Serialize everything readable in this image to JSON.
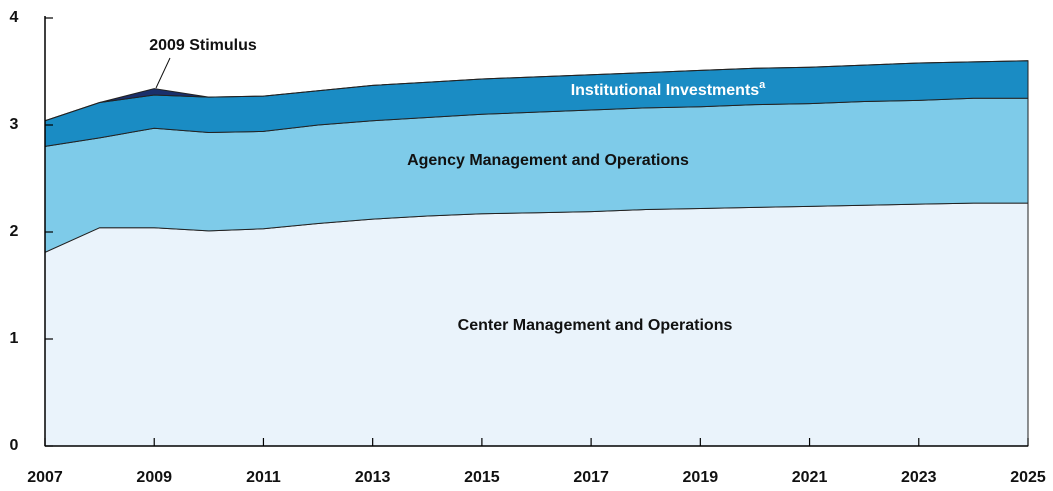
{
  "chart_data": {
    "type": "stacked_area",
    "x": [
      2007,
      2008,
      2009,
      2010,
      2011,
      2012,
      2013,
      2014,
      2015,
      2016,
      2017,
      2018,
      2019,
      2020,
      2021,
      2022,
      2023,
      2024,
      2025
    ],
    "xlim": [
      2007,
      2025
    ],
    "xticks": [
      2007,
      2009,
      2011,
      2013,
      2015,
      2017,
      2019,
      2021,
      2023,
      2025
    ],
    "ylim": [
      0,
      4
    ],
    "yticks": [
      0,
      1,
      2,
      3,
      4
    ],
    "grid": false,
    "series": [
      {
        "name": "Center Management and Operations",
        "color": "#eaf3fb",
        "values": [
          1.81,
          2.04,
          2.04,
          2.01,
          2.03,
          2.08,
          2.12,
          2.15,
          2.17,
          2.18,
          2.19,
          2.21,
          2.22,
          2.23,
          2.24,
          2.25,
          2.26,
          2.27,
          2.27
        ]
      },
      {
        "name": "Agency Management and Operations",
        "color": "#7ecbe9",
        "values": [
          0.99,
          0.84,
          0.93,
          0.92,
          0.91,
          0.92,
          0.92,
          0.92,
          0.93,
          0.94,
          0.95,
          0.95,
          0.95,
          0.96,
          0.96,
          0.97,
          0.97,
          0.98,
          0.98
        ]
      },
      {
        "name": "Institutional Investments",
        "note": "a",
        "color": "#1a8cc4",
        "values": [
          0.24,
          0.33,
          0.31,
          0.33,
          0.33,
          0.32,
          0.33,
          0.33,
          0.33,
          0.33,
          0.33,
          0.33,
          0.34,
          0.34,
          0.34,
          0.34,
          0.35,
          0.34,
          0.35
        ]
      },
      {
        "name": "2009 Stimulus",
        "color": "#1a2f6b",
        "values": [
          0,
          0,
          0.06,
          0,
          0,
          0,
          0,
          0,
          0,
          0,
          0,
          0,
          0,
          0,
          0,
          0,
          0,
          0,
          0
        ]
      }
    ]
  }
}
